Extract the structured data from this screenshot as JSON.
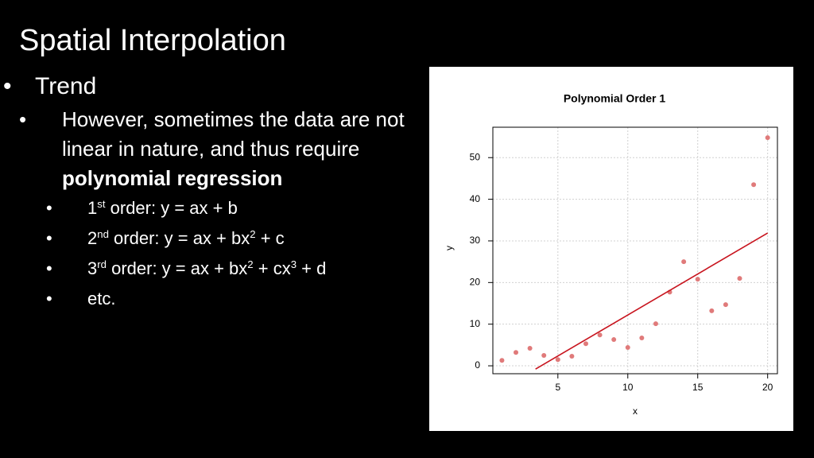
{
  "slide": {
    "title": "Spatial Interpolation",
    "bullets": [
      {
        "segments": [
          {
            "text": "Trend"
          }
        ],
        "children": [
          {
            "segments": [
              {
                "text": "However, sometimes the data are not linear in nature, and thus require "
              },
              {
                "text": "polynomial regression",
                "style": "bold"
              }
            ],
            "children": [
              {
                "segments": [
                  {
                    "text": "1"
                  },
                  {
                    "text": "st",
                    "style": "sup"
                  },
                  {
                    "text": " order: y = ax + b"
                  }
                ]
              },
              {
                "segments": [
                  {
                    "text": "2"
                  },
                  {
                    "text": "nd",
                    "style": "sup"
                  },
                  {
                    "text": " order: y = ax + bx"
                  },
                  {
                    "text": "2",
                    "style": "sup"
                  },
                  {
                    "text": " + c"
                  }
                ]
              },
              {
                "segments": [
                  {
                    "text": "3"
                  },
                  {
                    "text": "rd",
                    "style": "sup"
                  },
                  {
                    "text": " order: y = ax + bx"
                  },
                  {
                    "text": "2",
                    "style": "sup"
                  },
                  {
                    "text": " + cx"
                  },
                  {
                    "text": "3",
                    "style": "sup"
                  },
                  {
                    "text": " + d"
                  }
                ]
              },
              {
                "segments": [
                  {
                    "text": "etc."
                  }
                ]
              }
            ]
          }
        ]
      }
    ]
  },
  "chart_data": {
    "type": "scatter",
    "title": "Polynomial Order 1",
    "x_label": "x",
    "y_label": "y",
    "x": [
      1,
      2,
      3,
      4,
      5,
      6,
      7,
      8,
      9,
      10,
      11,
      12,
      13,
      14,
      15,
      16,
      17,
      18,
      19,
      20
    ],
    "series": [
      {
        "color": "#e07a7a",
        "values": [
          1.3,
          3.2,
          4.2,
          2.5,
          1.5,
          2.3,
          5.3,
          7.4,
          6.3,
          4.4,
          6.7,
          10.1,
          17.7,
          25,
          20.8,
          13.2,
          14.7,
          21,
          43.5,
          54.8
        ]
      }
    ],
    "fit": {
      "color": "#c8141e",
      "x": [
        3.4,
        20
      ],
      "values": [
        -0.8,
        31.9
      ]
    },
    "xlim": [
      0.35,
      20.7
    ],
    "ylim": [
      -1.9,
      57.3
    ],
    "xticks": [
      5,
      10,
      15,
      20
    ],
    "yticks": [
      0,
      10,
      20,
      30,
      40,
      50
    ],
    "grid": true
  }
}
